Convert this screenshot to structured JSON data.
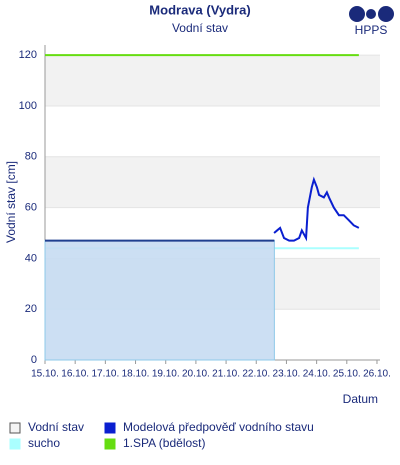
{
  "chart_data": {
    "type": "line",
    "title": "Modrava (Vydra)",
    "subtitle": "Vodní stav",
    "logo": "HPPS",
    "y_label": "Vodní stav [cm]",
    "x_label": "Datum",
    "xlim": [
      15,
      26.1
    ],
    "ylim": [
      0,
      124
    ],
    "xticks": [
      {
        "value": 15,
        "label": "15.10."
      },
      {
        "value": 16,
        "label": "16.10."
      },
      {
        "value": 17,
        "label": "17.10."
      },
      {
        "value": 18,
        "label": "18.10."
      },
      {
        "value": 19,
        "label": "19.10."
      },
      {
        "value": 20,
        "label": "20.10."
      },
      {
        "value": 21,
        "label": "21.10."
      },
      {
        "value": 22,
        "label": "22.10."
      },
      {
        "value": 23,
        "label": "23.10."
      },
      {
        "value": 24,
        "label": "24.10."
      },
      {
        "value": 25,
        "label": "25.10."
      },
      {
        "value": 26,
        "label": "26.10."
      }
    ],
    "yticks": [
      0,
      20,
      40,
      60,
      80,
      100,
      120
    ],
    "grid": true,
    "bands": true,
    "series": [
      {
        "name": "Vodní stav",
        "color": "#1f3f8f",
        "fill": "#c6dcf2",
        "x": [
          15,
          22.6
        ],
        "values": [
          47,
          47
        ]
      },
      {
        "name": "Modelová předpověď vodního stavu",
        "color": "#0a1fd0",
        "x": [
          22.59,
          22.69,
          22.79,
          22.92,
          23.09,
          23.25,
          23.42,
          23.51,
          23.65,
          23.71,
          23.84,
          23.91,
          24.01,
          24.08,
          24.24,
          24.34,
          24.41,
          24.57,
          24.74,
          24.9,
          25.07,
          25.23,
          25.4
        ],
        "values": [
          50,
          51,
          52,
          48,
          47,
          47,
          48,
          51,
          48,
          60,
          68,
          71,
          68,
          65,
          64,
          66,
          64,
          60,
          57,
          57,
          55,
          53,
          52
        ]
      },
      {
        "name": "sucho",
        "color": "#aaffff",
        "x": [
          15,
          25.4
        ],
        "values": [
          44,
          44
        ]
      },
      {
        "name": "1.SPA (bdělost)",
        "color": "#66dd11",
        "x": [
          15,
          25.4
        ],
        "values": [
          120,
          120
        ]
      }
    ]
  }
}
